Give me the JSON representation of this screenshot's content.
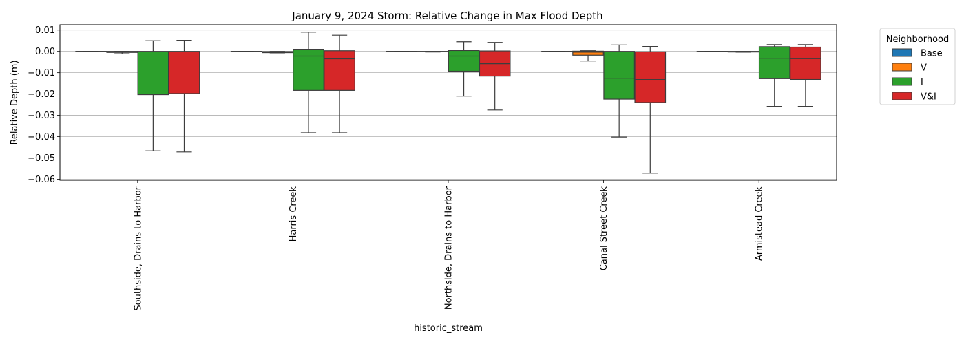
{
  "chart_data": {
    "type": "box",
    "title": "January 9, 2024 Storm: Relative Change in Max Flood Depth",
    "xlabel": "historic_stream",
    "ylabel": "Relative Depth (m)",
    "ylim": [
      -0.0605,
      0.0125
    ],
    "yticks": [
      0.01,
      0.0,
      -0.01,
      -0.02,
      -0.03,
      -0.04,
      -0.05,
      -0.06
    ],
    "ytick_labels": [
      "0.01",
      "0.00",
      "−0.01",
      "−0.02",
      "−0.03",
      "−0.04",
      "−0.05",
      "−0.06"
    ],
    "grid": "horizontal",
    "legend": {
      "title": "Neighborhood",
      "placement": "outside right",
      "entries": [
        "Base",
        "V",
        "I",
        "V&I"
      ]
    },
    "categories": [
      "Southside, Drains to Harbor",
      "Harris Creek",
      "Northside, Drains to Harbor",
      "Canal Street Creek",
      "Armistead Creek"
    ],
    "series": [
      {
        "name": "Base",
        "color": "#1f77b4",
        "boxes": [
          {
            "whisker_low": 0.0,
            "q1": 0.0,
            "median": 0.0,
            "q3": 0.0,
            "whisker_high": 0.0
          },
          {
            "whisker_low": 0.0,
            "q1": 0.0,
            "median": 0.0,
            "q3": 0.0,
            "whisker_high": 0.0
          },
          {
            "whisker_low": 0.0,
            "q1": 0.0,
            "median": 0.0,
            "q3": 0.0,
            "whisker_high": 0.0
          },
          {
            "whisker_low": 0.0,
            "q1": 0.0,
            "median": 0.0,
            "q3": 0.0,
            "whisker_high": 0.0
          },
          {
            "whisker_low": 0.0,
            "q1": 0.0,
            "median": 0.0,
            "q3": 0.0,
            "whisker_high": 0.0
          }
        ]
      },
      {
        "name": "V",
        "color": "#ff7f0e",
        "boxes": [
          {
            "whisker_low": -0.0011,
            "q1": -0.0005,
            "median": -0.0002,
            "q3": 0.0,
            "whisker_high": 0.0
          },
          {
            "whisker_low": -0.0007,
            "q1": -0.0006,
            "median": -0.0003,
            "q3": -0.0001,
            "whisker_high": 0.0
          },
          {
            "whisker_low": -0.0003,
            "q1": -0.0002,
            "median": -0.0001,
            "q3": 0.0,
            "whisker_high": 0.0
          },
          {
            "whisker_low": -0.0045,
            "q1": -0.0018,
            "median": -0.0004,
            "q3": 0.0001,
            "whisker_high": 0.0003
          },
          {
            "whisker_low": -0.0004,
            "q1": -0.0003,
            "median": -0.0001,
            "q3": 0.0,
            "whisker_high": 0.0
          }
        ]
      },
      {
        "name": "I",
        "color": "#2ca02c",
        "boxes": [
          {
            "whisker_low": -0.0467,
            "q1": -0.0203,
            "median": -0.0002,
            "q3": 0.0,
            "whisker_high": 0.005
          },
          {
            "whisker_low": -0.0382,
            "q1": -0.0183,
            "median": -0.0022,
            "q3": 0.001,
            "whisker_high": 0.009
          },
          {
            "whisker_low": -0.021,
            "q1": -0.0093,
            "median": -0.0022,
            "q3": 0.0004,
            "whisker_high": 0.0045
          },
          {
            "whisker_low": -0.0402,
            "q1": -0.0224,
            "median": -0.0126,
            "q3": 0.0,
            "whisker_high": 0.003
          },
          {
            "whisker_low": -0.0258,
            "q1": -0.0128,
            "median": -0.0032,
            "q3": 0.0022,
            "whisker_high": 0.0032
          }
        ]
      },
      {
        "name": "V&I",
        "color": "#d62728",
        "boxes": [
          {
            "whisker_low": -0.0472,
            "q1": -0.0198,
            "median": -0.0002,
            "q3": 0.0,
            "whisker_high": 0.0052
          },
          {
            "whisker_low": -0.0382,
            "q1": -0.0183,
            "median": -0.0035,
            "q3": 0.0003,
            "whisker_high": 0.0076
          },
          {
            "whisker_low": -0.0275,
            "q1": -0.0116,
            "median": -0.0058,
            "q3": 0.0002,
            "whisker_high": 0.0042
          },
          {
            "whisker_low": -0.0572,
            "q1": -0.024,
            "median": -0.0132,
            "q3": -0.0002,
            "whisker_high": 0.0023
          },
          {
            "whisker_low": -0.0258,
            "q1": -0.0132,
            "median": -0.0034,
            "q3": 0.002,
            "whisker_high": 0.0032
          }
        ]
      }
    ]
  }
}
